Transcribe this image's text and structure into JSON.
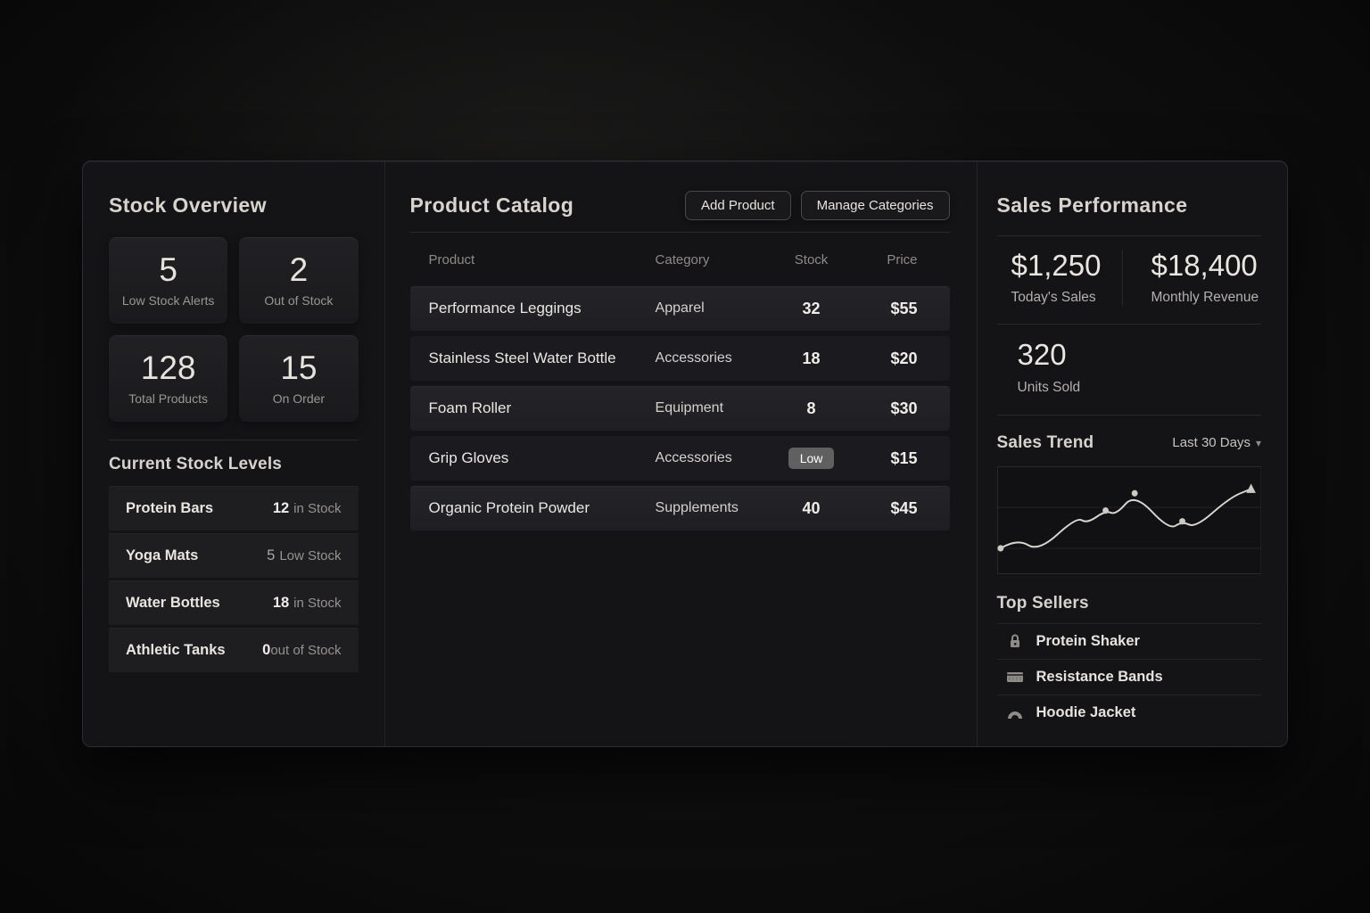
{
  "stock_overview": {
    "title": "Stock Overview",
    "stats": [
      {
        "value": "5",
        "label": "Low Stock Alerts"
      },
      {
        "value": "2",
        "label": "Out of Stock"
      },
      {
        "value": "128",
        "label": "Total Products"
      },
      {
        "value": "15",
        "label": "On Order"
      }
    ],
    "stock_levels": {
      "title": "Current Stock Levels",
      "items": [
        {
          "name": "Protein Bars",
          "value": "12",
          "unit": "in Stock"
        },
        {
          "name": "Yoga Mats",
          "value": "5",
          "unit": "Low Stock"
        },
        {
          "name": "Water Bottles",
          "value": "18",
          "unit": "in Stock"
        },
        {
          "name": "Athletic Tanks",
          "value": "0",
          "unit": "out of Stock"
        }
      ]
    }
  },
  "product_catalog": {
    "title": "Product Catalog",
    "buttons": {
      "add_product": "Add Product",
      "manage_categories": "Manage Categories"
    },
    "columns": {
      "product": "Product",
      "category": "Category",
      "stock": "Stock",
      "price": "Price"
    },
    "rows": [
      {
        "product": "Performance Leggings",
        "category": "Apparel",
        "stock": "32",
        "price": "$55"
      },
      {
        "product": "Stainless Steel Water Bottle",
        "category": "Accessories",
        "stock": "18",
        "price": "$20"
      },
      {
        "product": "Foam Roller",
        "category": "Equipment",
        "stock": "8",
        "price": "$30"
      },
      {
        "product": "Grip Gloves",
        "category": "Accessories",
        "stock": "Low",
        "price": "$15"
      },
      {
        "product": "Organic Protein Powder",
        "category": "Supplements",
        "stock": "40",
        "price": "$45"
      }
    ]
  },
  "sales_performance": {
    "title": "Sales Performance",
    "stats": [
      {
        "value": "$1,250",
        "label": "Today's Sales"
      },
      {
        "value": "$18,400",
        "label": "Monthly Revenue"
      },
      {
        "value": "320",
        "label": "Units Sold"
      }
    ],
    "trend": {
      "title": "Sales Trend",
      "range": "Last 30 Days"
    },
    "top_sellers": {
      "title": "Top Sellers",
      "items": [
        {
          "name": "Protein Shaker"
        },
        {
          "name": "Resistance Bands"
        },
        {
          "name": "Hoodie Jacket"
        }
      ]
    }
  },
  "icons": {
    "chevron_down": "▾"
  },
  "colors": {
    "panel_bg": "#141417",
    "card_bg": "#1e1e21",
    "row_light": "#232327",
    "row_dark": "#1b1b1f",
    "badge_bg": "#606060",
    "text_bright": "#eae6e2",
    "text_muted": "#9a9692",
    "chart_line": "#d9d6d2"
  },
  "chart_data": {
    "type": "line",
    "title": "Sales Trend",
    "range_label": "Last 30 Days",
    "x": [
      1,
      2,
      3,
      4,
      5,
      6,
      7,
      8,
      9,
      10,
      11,
      12,
      13
    ],
    "x_pct": [
      1.3,
      7.7,
      15.7,
      30,
      34,
      41,
      45,
      52,
      65,
      70,
      75,
      88,
      96
    ],
    "values": [
      24,
      33,
      21,
      53,
      47,
      59,
      55,
      75,
      41,
      49,
      43,
      71,
      79
    ],
    "ylim": [
      0,
      100
    ],
    "grid": "horizontal",
    "legend": false,
    "line_color": "#d9d6d2",
    "marker_color": "#cdc9c5",
    "markers": {
      "dot_indices": [
        0,
        5,
        7,
        9
      ],
      "arrow_index": 12
    }
  }
}
